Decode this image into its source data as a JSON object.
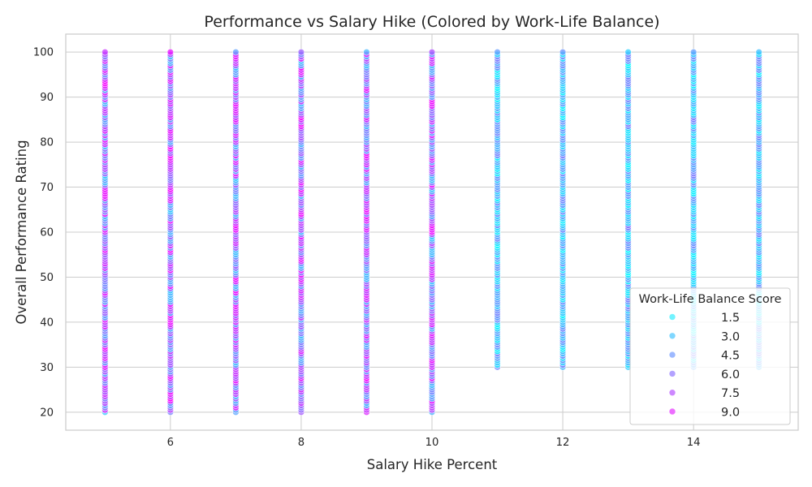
{
  "chart_data": {
    "type": "scatter",
    "title": "Performance vs Salary Hike (Colored by Work-Life Balance)",
    "xlabel": "Salary Hike Percent",
    "ylabel": "Overall Performance Rating",
    "xlim": [
      4.4,
      15.6
    ],
    "ylim": [
      16,
      104
    ],
    "xticks": [
      6,
      8,
      10,
      12,
      14
    ],
    "yticks": [
      20,
      30,
      40,
      50,
      60,
      70,
      80,
      90,
      100
    ],
    "grid": true,
    "x_values": [
      5,
      6,
      7,
      8,
      9,
      10,
      11,
      12,
      13,
      14,
      15
    ],
    "y_ranges": [
      {
        "x": 5,
        "y_min": 20,
        "y_max": 100
      },
      {
        "x": 6,
        "y_min": 20,
        "y_max": 100
      },
      {
        "x": 7,
        "y_min": 20,
        "y_max": 100
      },
      {
        "x": 8,
        "y_min": 20,
        "y_max": 100
      },
      {
        "x": 9,
        "y_min": 20,
        "y_max": 100
      },
      {
        "x": 10,
        "y_min": 20,
        "y_max": 100
      },
      {
        "x": 11,
        "y_min": 30,
        "y_max": 100
      },
      {
        "x": 12,
        "y_min": 30,
        "y_max": 100
      },
      {
        "x": 13,
        "y_min": 30,
        "y_max": 100
      },
      {
        "x": 14,
        "y_min": 30,
        "y_max": 100
      },
      {
        "x": 15,
        "y_min": 30,
        "y_max": 100
      }
    ],
    "hue": {
      "name": "Work-Life Balance Score",
      "palette": "cool",
      "min": 0.5,
      "max": 10,
      "x_ranges": [
        {
          "x": 5,
          "min": 2.5,
          "max": 10
        },
        {
          "x": 6,
          "min": 2.5,
          "max": 10
        },
        {
          "x": 7,
          "min": 2.5,
          "max": 10
        },
        {
          "x": 8,
          "min": 2.5,
          "max": 10
        },
        {
          "x": 9,
          "min": 2.5,
          "max": 10
        },
        {
          "x": 10,
          "min": 2.5,
          "max": 10
        },
        {
          "x": 11,
          "min": 0.5,
          "max": 5.5
        },
        {
          "x": 12,
          "min": 0.5,
          "max": 5.5
        },
        {
          "x": 13,
          "min": 0.5,
          "max": 5.5
        },
        {
          "x": 14,
          "min": 0.5,
          "max": 5.5
        },
        {
          "x": 15,
          "min": 0.5,
          "max": 5.5
        }
      ]
    },
    "legend": {
      "title": "Work-Life Balance Score",
      "placement": "lower-right",
      "entries": [
        {
          "label": "1.5",
          "value": 1.5,
          "color": "#4ff0ff"
        },
        {
          "label": "3.0",
          "value": 3.0,
          "color": "#60cdff"
        },
        {
          "label": "4.5",
          "value": 4.5,
          "color": "#84a8ff"
        },
        {
          "label": "6.0",
          "value": 6.0,
          "color": "#a08bff"
        },
        {
          "label": "7.5",
          "value": 7.5,
          "color": "#c06aff"
        },
        {
          "label": "9.0",
          "value": 9.0,
          "color": "#e84aff"
        }
      ]
    },
    "colors": {
      "background": "#ffffff",
      "grid": "#cccccc",
      "marker_edge": "#ffffff"
    }
  }
}
